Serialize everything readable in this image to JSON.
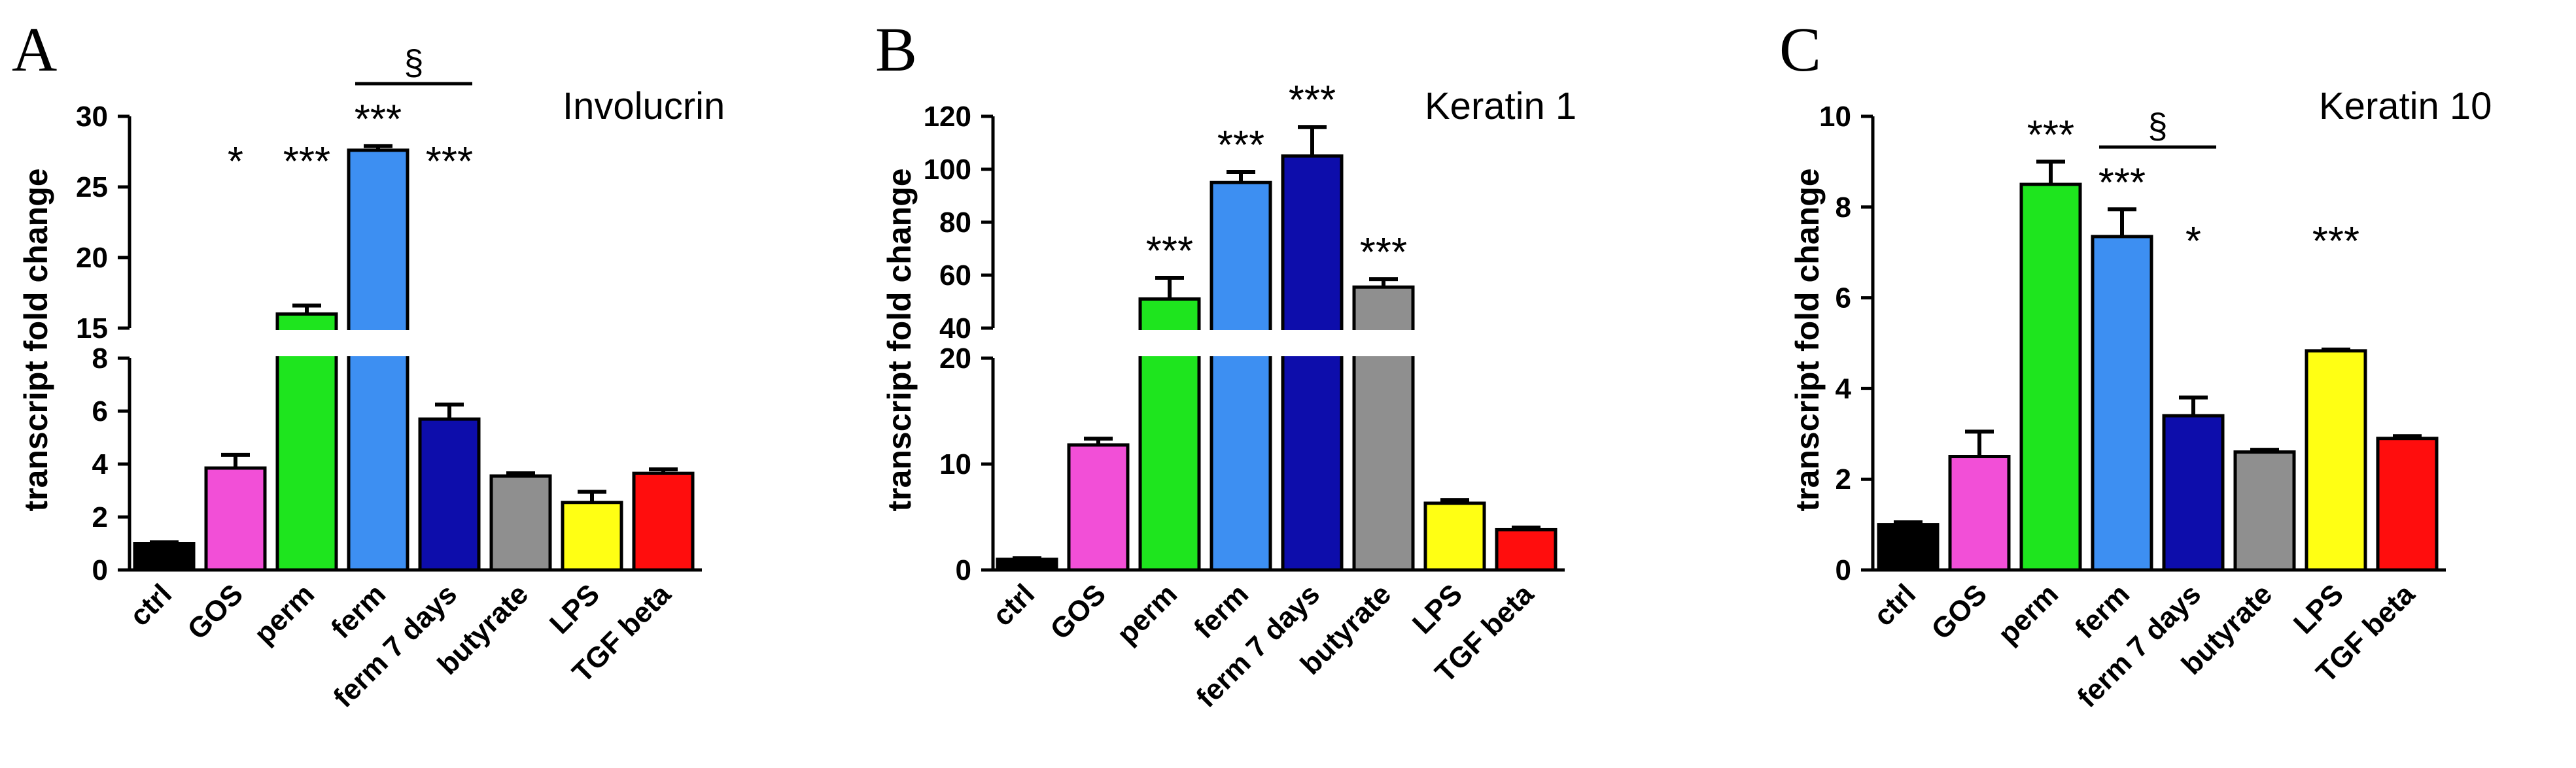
{
  "chart_data": [
    {
      "type": "bar",
      "panel": "A",
      "title": "Involucrin",
      "ylabel": "transcript fold change",
      "xlabel": "",
      "broken_axis": true,
      "lower_ylim": [
        0,
        8
      ],
      "upper_ylim": [
        15,
        30
      ],
      "lower_ticks": [
        "0",
        "2",
        "4",
        "6",
        "8"
      ],
      "upper_ticks": [
        "15",
        "20",
        "25",
        "30"
      ],
      "categories": [
        "ctrl",
        "GOS",
        "perm",
        "ferm",
        "ferm 7 days",
        "butyrate",
        "LPS",
        "TGF beta"
      ],
      "values": [
        1.0,
        3.85,
        16.0,
        27.6,
        5.7,
        3.55,
        2.55,
        3.65
      ],
      "errors": [
        0.05,
        0.5,
        0.6,
        0.3,
        0.55,
        0.1,
        0.4,
        0.15
      ],
      "colors": [
        "#000000",
        "#f24fd7",
        "#1ee51e",
        "#3d8ff2",
        "#0d0dab",
        "#8f8f8f",
        "#ffff14",
        "#ff0d0d"
      ],
      "significance": [
        "",
        "*",
        "***",
        "***",
        "***",
        "",
        "",
        ""
      ],
      "bracket": {
        "from": 3,
        "to": 4,
        "label": "§"
      }
    },
    {
      "type": "bar",
      "panel": "B",
      "title": "Keratin 1",
      "ylabel": "transcript fold change",
      "xlabel": "",
      "broken_axis": true,
      "lower_ylim": [
        0,
        20
      ],
      "upper_ylim": [
        40,
        120
      ],
      "lower_ticks": [
        "0",
        "10",
        "20"
      ],
      "upper_ticks": [
        "40",
        "60",
        "80",
        "100",
        "120"
      ],
      "categories": [
        "ctrl",
        "GOS",
        "perm",
        "ferm",
        "ferm 7 days",
        "butyrate",
        "LPS",
        "TGF beta"
      ],
      "values": [
        1.0,
        11.8,
        51.0,
        95.0,
        105.0,
        55.5,
        6.3,
        3.8
      ],
      "errors": [
        0.1,
        0.6,
        8.0,
        4.0,
        11.0,
        3.0,
        0.3,
        0.2
      ],
      "colors": [
        "#000000",
        "#f24fd7",
        "#1ee51e",
        "#3d8ff2",
        "#0d0dab",
        "#8f8f8f",
        "#ffff14",
        "#ff0d0d"
      ],
      "significance": [
        "",
        "",
        "***",
        "***",
        "***",
        "***",
        "",
        ""
      ],
      "bracket": null
    },
    {
      "type": "bar",
      "panel": "C",
      "title": "Keratin 10",
      "ylabel": "transcript fold change",
      "xlabel": "",
      "broken_axis": false,
      "ylim": [
        0,
        10
      ],
      "ticks": [
        "0",
        "2",
        "4",
        "6",
        "8",
        "10"
      ],
      "categories": [
        "ctrl",
        "GOS",
        "perm",
        "ferm",
        "ferm 7 days",
        "butyrate",
        "LPS",
        "TGF beta"
      ],
      "values": [
        1.0,
        2.5,
        8.5,
        7.35,
        3.4,
        2.6,
        4.83,
        2.9
      ],
      "errors": [
        0.05,
        0.55,
        0.5,
        0.6,
        0.4,
        0.05,
        0.03,
        0.05
      ],
      "colors": [
        "#000000",
        "#f24fd7",
        "#1ee51e",
        "#3d8ff2",
        "#0d0dab",
        "#8f8f8f",
        "#ffff14",
        "#ff0d0d"
      ],
      "significance": [
        "",
        "",
        "***",
        "***",
        "*",
        "",
        "***",
        ""
      ],
      "bracket": {
        "from": 3,
        "to": 4,
        "label": "§"
      }
    }
  ]
}
